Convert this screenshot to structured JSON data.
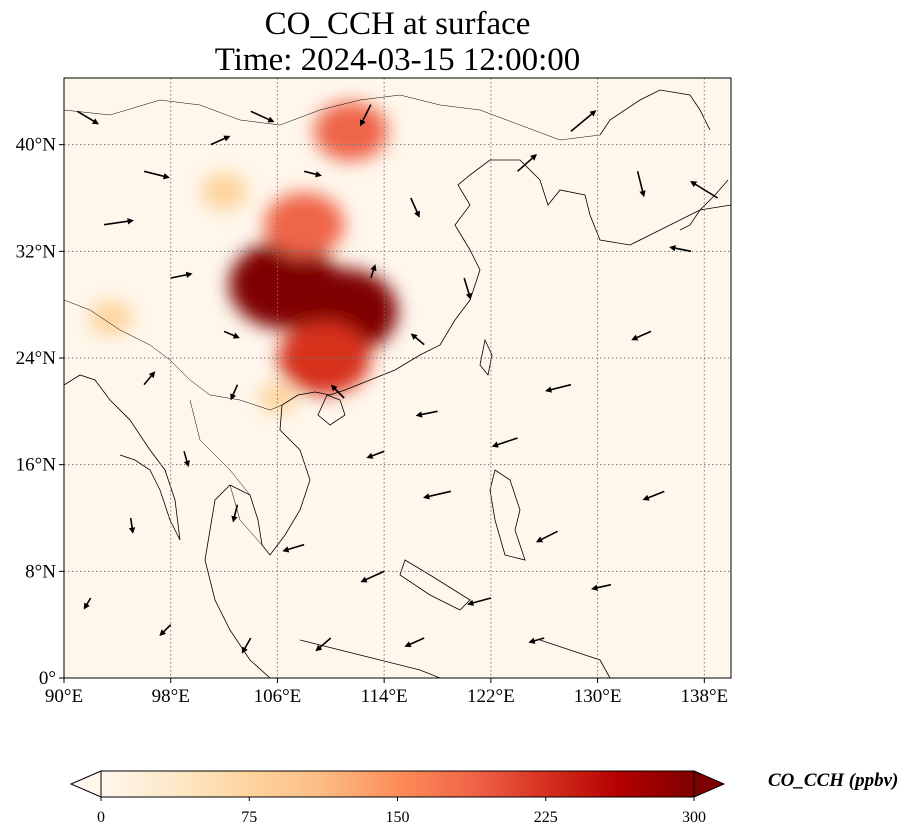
{
  "title_line1": "CO_CCH at surface",
  "title_line2": "Time: 2024-03-15 12:00:00",
  "map": {
    "extent": {
      "lon_min": 90,
      "lon_max": 140,
      "lat_min": 0,
      "lat_max": 45
    },
    "lon_ticks": [
      {
        "value": 90,
        "label": "90°E"
      },
      {
        "value": 98,
        "label": "98°E"
      },
      {
        "value": 106,
        "label": "106°E"
      },
      {
        "value": 114,
        "label": "114°E"
      },
      {
        "value": 122,
        "label": "122°E"
      },
      {
        "value": 130,
        "label": "130°E"
      },
      {
        "value": 138,
        "label": "138°E"
      }
    ],
    "lat_ticks": [
      {
        "value": 0,
        "label": "0°"
      },
      {
        "value": 8,
        "label": "8°N"
      },
      {
        "value": 16,
        "label": "16°N"
      },
      {
        "value": 24,
        "label": "24°N"
      },
      {
        "value": 32,
        "label": "32°N"
      },
      {
        "value": 40,
        "label": "40°N"
      }
    ],
    "gridlines": "dotted",
    "colormap": "OrRd",
    "colors": {
      "low": "#fff7ec",
      "mid": "#fc8d59",
      "high": "#7f0000",
      "coast": "#000000",
      "grid": "#777777"
    },
    "plumes": [
      {
        "lon": 106.5,
        "lat": 29.5,
        "level": 300
      },
      {
        "lon": 111.0,
        "lat": 27.5,
        "level": 290
      },
      {
        "lon": 109.5,
        "lat": 24.0,
        "level": 240
      },
      {
        "lon": 108.0,
        "lat": 34.0,
        "level": 200
      },
      {
        "lon": 111.5,
        "lat": 41.0,
        "level": 180
      },
      {
        "lon": 102.0,
        "lat": 36.5,
        "level": 90
      },
      {
        "lon": 93.5,
        "lat": 27.0,
        "level": 80
      },
      {
        "lon": 106.0,
        "lat": 21.0,
        "level": 60
      }
    ],
    "wind_vectors": [
      {
        "lon": 91,
        "lat": 42.5,
        "u": 1,
        "v": -0.6
      },
      {
        "lon": 93,
        "lat": 34,
        "u": 1.4,
        "v": 0.2
      },
      {
        "lon": 96,
        "lat": 38,
        "u": 1.2,
        "v": -0.3
      },
      {
        "lon": 98,
        "lat": 30,
        "u": 1.0,
        "v": 0.2
      },
      {
        "lon": 101,
        "lat": 40,
        "u": 0.9,
        "v": 0.4
      },
      {
        "lon": 104,
        "lat": 42.5,
        "u": 1.1,
        "v": -0.5
      },
      {
        "lon": 108,
        "lat": 38,
        "u": 0.8,
        "v": -0.2
      },
      {
        "lon": 113,
        "lat": 43,
        "u": -0.5,
        "v": -1.0
      },
      {
        "lon": 116,
        "lat": 36,
        "u": 0.4,
        "v": -0.9
      },
      {
        "lon": 120,
        "lat": 30,
        "u": 0.3,
        "v": -1.0
      },
      {
        "lon": 124,
        "lat": 38,
        "u": 0.9,
        "v": 0.8
      },
      {
        "lon": 128,
        "lat": 41,
        "u": 1.2,
        "v": 1.0
      },
      {
        "lon": 133,
        "lat": 38,
        "u": 0.3,
        "v": -1.2
      },
      {
        "lon": 137,
        "lat": 32,
        "u": -1.0,
        "v": 0.2
      },
      {
        "lon": 134,
        "lat": 26,
        "u": -0.9,
        "v": -0.4
      },
      {
        "lon": 128,
        "lat": 22,
        "u": -1.2,
        "v": -0.3
      },
      {
        "lon": 124,
        "lat": 18,
        "u": -1.2,
        "v": -0.4
      },
      {
        "lon": 118,
        "lat": 20,
        "u": -1.0,
        "v": -0.2
      },
      {
        "lon": 114,
        "lat": 17,
        "u": -0.8,
        "v": -0.3
      },
      {
        "lon": 119,
        "lat": 14,
        "u": -1.3,
        "v": -0.3
      },
      {
        "lon": 127,
        "lat": 11,
        "u": -1.0,
        "v": -0.5
      },
      {
        "lon": 135,
        "lat": 14,
        "u": -1.0,
        "v": -0.4
      },
      {
        "lon": 131,
        "lat": 7,
        "u": -0.9,
        "v": -0.2
      },
      {
        "lon": 122,
        "lat": 6,
        "u": -1.1,
        "v": -0.3
      },
      {
        "lon": 114,
        "lat": 8,
        "u": -1.1,
        "v": -0.5
      },
      {
        "lon": 108,
        "lat": 10,
        "u": -1.0,
        "v": -0.3
      },
      {
        "lon": 103,
        "lat": 13,
        "u": -0.2,
        "v": -0.8
      },
      {
        "lon": 99,
        "lat": 17,
        "u": 0.2,
        "v": -0.7
      },
      {
        "lon": 95,
        "lat": 12,
        "u": 0.1,
        "v": -0.7
      },
      {
        "lon": 92,
        "lat": 6,
        "u": -0.3,
        "v": -0.5
      },
      {
        "lon": 98,
        "lat": 4,
        "u": -0.5,
        "v": -0.5
      },
      {
        "lon": 104,
        "lat": 3,
        "u": -0.4,
        "v": -0.7
      },
      {
        "lon": 110,
        "lat": 3,
        "u": -0.7,
        "v": -0.6
      },
      {
        "lon": 117,
        "lat": 3,
        "u": -0.9,
        "v": -0.4
      },
      {
        "lon": 126,
        "lat": 3,
        "u": -0.7,
        "v": -0.2
      },
      {
        "lon": 113,
        "lat": 30,
        "u": 0.2,
        "v": 0.6
      },
      {
        "lon": 117,
        "lat": 25,
        "u": -0.6,
        "v": 0.5
      },
      {
        "lon": 111,
        "lat": 21,
        "u": -0.6,
        "v": 0.6
      },
      {
        "lon": 103,
        "lat": 22,
        "u": -0.3,
        "v": -0.7
      },
      {
        "lon": 96,
        "lat": 22,
        "u": 0.5,
        "v": 0.6
      },
      {
        "lon": 102,
        "lat": 26,
        "u": 0.7,
        "v": -0.3
      },
      {
        "lon": 139,
        "lat": 36,
        "u": -1.3,
        "v": 0.8
      }
    ]
  },
  "colorbar": {
    "label": "CO_CCH (ppbv)",
    "min": 0,
    "max": 300,
    "extend": "both",
    "ticks": [
      {
        "value": 0,
        "label": "0"
      },
      {
        "value": 75,
        "label": "75"
      },
      {
        "value": 150,
        "label": "150"
      },
      {
        "value": 225,
        "label": "225"
      },
      {
        "value": 300,
        "label": "300"
      }
    ]
  }
}
